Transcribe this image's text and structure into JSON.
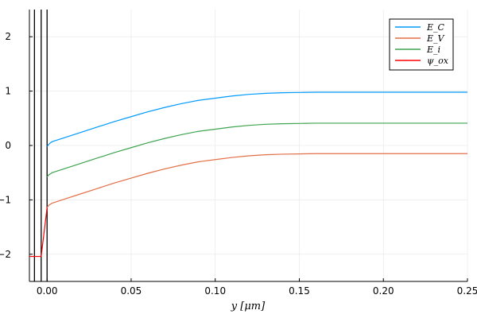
{
  "chart_data": {
    "type": "line",
    "title": "",
    "xlabel": "y [μm]",
    "ylabel": "",
    "xlim": [
      -0.0105,
      0.25
    ],
    "ylim": [
      -2.5,
      2.5
    ],
    "xticks": [
      0.0,
      0.05,
      0.1,
      0.15,
      0.2,
      0.25
    ],
    "xtick_labels": [
      "0.00",
      "0.05",
      "0.10",
      "0.15",
      "0.20",
      "0.25"
    ],
    "yticks": [
      -2,
      -1,
      0,
      1,
      2
    ],
    "ytick_labels": [
      "−2",
      "−1",
      "0",
      "1",
      "2"
    ],
    "grid": true,
    "legend_position": "top-right",
    "vertical_lines": [
      -0.0075,
      -0.0035,
      0.0
    ],
    "series": [
      {
        "name": "E_C",
        "color": "#009AFA",
        "x": [
          0.0,
          0.001,
          0.002,
          0.003,
          0.005,
          0.01,
          0.02,
          0.03,
          0.04,
          0.05,
          0.06,
          0.07,
          0.08,
          0.09,
          0.1,
          0.11,
          0.12,
          0.13,
          0.14,
          0.15,
          0.16,
          0.17,
          0.18,
          0.19,
          0.2,
          0.21,
          0.22,
          0.23,
          0.24,
          0.25
        ],
        "y": [
          -0.02,
          0.02,
          0.05,
          0.07,
          0.09,
          0.14,
          0.24,
          0.34,
          0.44,
          0.53,
          0.62,
          0.7,
          0.77,
          0.83,
          0.87,
          0.91,
          0.94,
          0.96,
          0.97,
          0.975,
          0.98,
          0.98,
          0.98,
          0.98,
          0.98,
          0.98,
          0.98,
          0.98,
          0.98,
          0.98
        ]
      },
      {
        "name": "E_V",
        "color": "#E36F47",
        "x": [
          0.0,
          0.001,
          0.002,
          0.003,
          0.005,
          0.01,
          0.02,
          0.03,
          0.04,
          0.05,
          0.06,
          0.07,
          0.08,
          0.09,
          0.1,
          0.11,
          0.12,
          0.13,
          0.14,
          0.15,
          0.16,
          0.17,
          0.18,
          0.19,
          0.2,
          0.21,
          0.22,
          0.23,
          0.24,
          0.25
        ],
        "y": [
          -1.14,
          -1.1,
          -1.08,
          -1.06,
          -1.04,
          -0.99,
          -0.89,
          -0.79,
          -0.69,
          -0.6,
          -0.51,
          -0.43,
          -0.36,
          -0.3,
          -0.26,
          -0.22,
          -0.19,
          -0.17,
          -0.16,
          -0.155,
          -0.15,
          -0.15,
          -0.15,
          -0.15,
          -0.15,
          -0.15,
          -0.15,
          -0.15,
          -0.15,
          -0.15
        ]
      },
      {
        "name": "E_i",
        "color": "#3EA44E",
        "x": [
          0.0,
          0.001,
          0.002,
          0.003,
          0.005,
          0.01,
          0.02,
          0.03,
          0.04,
          0.05,
          0.06,
          0.07,
          0.08,
          0.09,
          0.1,
          0.11,
          0.12,
          0.13,
          0.14,
          0.15,
          0.16,
          0.17,
          0.18,
          0.19,
          0.2,
          0.21,
          0.22,
          0.23,
          0.24,
          0.25
        ],
        "y": [
          -0.58,
          -0.54,
          -0.52,
          -0.5,
          -0.48,
          -0.43,
          -0.33,
          -0.23,
          -0.13,
          -0.04,
          0.05,
          0.13,
          0.2,
          0.26,
          0.3,
          0.34,
          0.37,
          0.39,
          0.4,
          0.405,
          0.41,
          0.41,
          0.41,
          0.41,
          0.41,
          0.41,
          0.41,
          0.41,
          0.41,
          0.41
        ]
      },
      {
        "name": "ψ_ox",
        "color": "#FF0000",
        "x": [
          -0.0105,
          -0.0075,
          -0.0035,
          0.0
        ],
        "y": [
          -2.04,
          -2.04,
          -2.04,
          -1.14
        ]
      }
    ]
  }
}
